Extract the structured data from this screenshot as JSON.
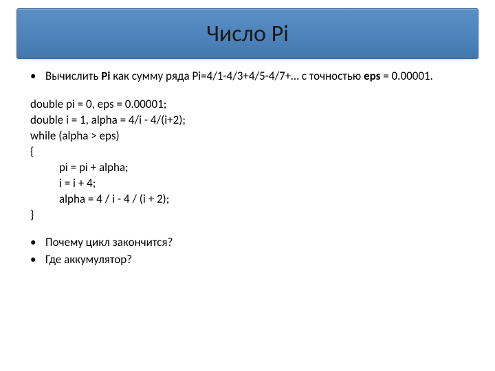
{
  "title": "Число Pi",
  "colors": {
    "title_gradient_top": "#5a8fc4",
    "title_gradient_mid": "#4f85bc",
    "title_gradient_bottom": "#4277ae",
    "title_border": "#3d6a9a",
    "background": "#ffffff",
    "text": "#000000",
    "title_text": "#1a1a1a"
  },
  "typography": {
    "title_fontsize": 34,
    "body_fontsize": 17,
    "font_family": "Calibri"
  },
  "bullets_top": [
    {
      "pre": "Вычислить ",
      "b1": "Pi",
      "mid": " как сумму ряда Pi=4/1-4/3+4/5-4/7+… с точностью ",
      "b2": "eps",
      "post": " = 0.00001."
    }
  ],
  "code": [
    {
      "text": "double pi = 0, eps = 0.00001;",
      "indent": false
    },
    {
      "text": "double i = 1, alpha = 4/i - 4/(i+2);",
      "indent": false
    },
    {
      "text": "while (alpha > eps)",
      "indent": false
    },
    {
      "text": "{",
      "indent": false
    },
    {
      "text": "pi = pi + alpha;",
      "indent": true
    },
    {
      "text": "i = i + 4;",
      "indent": true
    },
    {
      "text": "alpha = 4 / i - 4 / (i + 2);",
      "indent": true
    },
    {
      "text": "}",
      "indent": false
    }
  ],
  "bullets_bottom": [
    "Почему цикл закончится?",
    "Где аккумулятор?"
  ]
}
